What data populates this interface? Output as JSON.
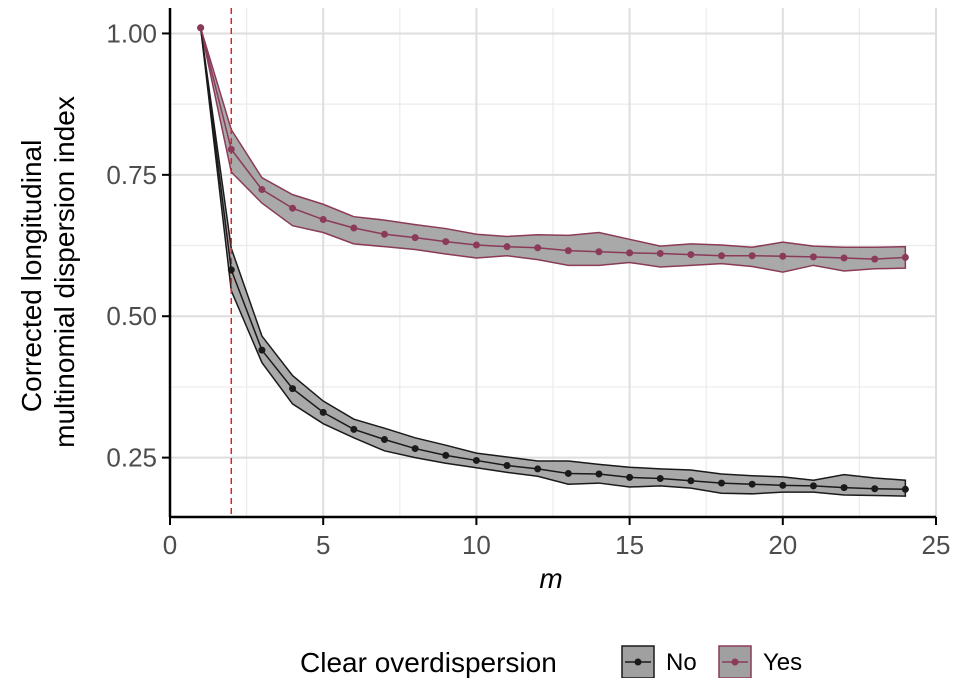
{
  "chart_data": {
    "type": "line",
    "xlabel": "m",
    "ylabel_lines": [
      "Corrected longitudinal",
      "multinomial dispersion index"
    ],
    "xlim": [
      0,
      25
    ],
    "ylim": [
      0.145,
      1.045
    ],
    "x_ticks": [
      0,
      5,
      10,
      15,
      20,
      25
    ],
    "x_tick_labels": [
      "0",
      "5",
      "10",
      "15",
      "20",
      "25"
    ],
    "y_ticks": [
      0.25,
      0.5,
      0.75,
      1.0
    ],
    "y_tick_labels": [
      "0.25",
      "0.50",
      "0.75",
      "1.00"
    ],
    "x_minor_ticks": [
      2.5,
      7.5,
      12.5,
      17.5,
      22.5
    ],
    "y_minor_ticks": [
      0.375,
      0.625,
      0.875
    ],
    "grid": true,
    "reference_line": {
      "x": 2,
      "style": "dashed",
      "color": "#d62728"
    },
    "legend": {
      "title": "Clear overdispersion",
      "position": "bottom"
    },
    "x": [
      1,
      2,
      3,
      4,
      5,
      6,
      7,
      8,
      9,
      10,
      11,
      12,
      13,
      14,
      15,
      16,
      17,
      18,
      19,
      20,
      21,
      22,
      23,
      24
    ],
    "series": [
      {
        "name": "No",
        "color": "#1a1a1a",
        "values": [
          1.01,
          0.582,
          0.44,
          0.372,
          0.33,
          0.3,
          0.282,
          0.266,
          0.254,
          0.245,
          0.236,
          0.23,
          0.222,
          0.221,
          0.215,
          0.213,
          0.209,
          0.205,
          0.203,
          0.201,
          0.2,
          0.197,
          0.195,
          0.194
        ],
        "lower": [
          1.01,
          0.545,
          0.418,
          0.345,
          0.31,
          0.285,
          0.262,
          0.25,
          0.24,
          0.232,
          0.224,
          0.217,
          0.203,
          0.205,
          0.198,
          0.2,
          0.196,
          0.187,
          0.186,
          0.189,
          0.189,
          0.184,
          0.183,
          0.182
        ],
        "upper": [
          1.01,
          0.62,
          0.465,
          0.395,
          0.35,
          0.318,
          0.302,
          0.285,
          0.272,
          0.258,
          0.251,
          0.244,
          0.244,
          0.238,
          0.233,
          0.23,
          0.228,
          0.221,
          0.218,
          0.216,
          0.21,
          0.22,
          0.214,
          0.21
        ]
      },
      {
        "name": "Yes",
        "color": "#8b3a5a",
        "values": [
          1.01,
          0.795,
          0.724,
          0.691,
          0.671,
          0.656,
          0.645,
          0.639,
          0.632,
          0.626,
          0.623,
          0.621,
          0.616,
          0.614,
          0.612,
          0.611,
          0.609,
          0.607,
          0.607,
          0.606,
          0.605,
          0.603,
          0.601,
          0.604
        ],
        "lower": [
          1.01,
          0.755,
          0.7,
          0.66,
          0.648,
          0.628,
          0.623,
          0.618,
          0.61,
          0.603,
          0.607,
          0.6,
          0.59,
          0.59,
          0.595,
          0.587,
          0.59,
          0.593,
          0.588,
          0.578,
          0.59,
          0.58,
          0.584,
          0.585
        ],
        "upper": [
          1.01,
          0.83,
          0.745,
          0.715,
          0.698,
          0.676,
          0.67,
          0.662,
          0.655,
          0.645,
          0.641,
          0.644,
          0.643,
          0.648,
          0.636,
          0.624,
          0.628,
          0.626,
          0.622,
          0.631,
          0.624,
          0.622,
          0.622,
          0.623
        ]
      }
    ],
    "band_fill": "#a0a0a0"
  }
}
